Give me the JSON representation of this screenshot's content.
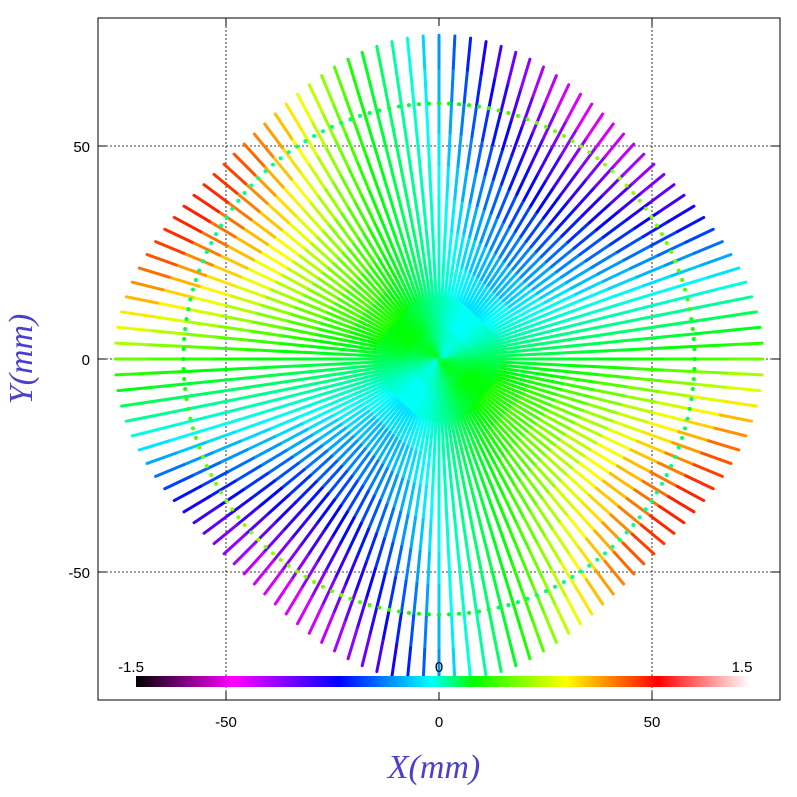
{
  "chart_data": {
    "type": "scatter",
    "title": "",
    "xlabel": "X(mm)",
    "ylabel": "Y(mm)",
    "xlim": [
      -80,
      80
    ],
    "ylim": [
      -80,
      80
    ],
    "xticks": [
      -50,
      0,
      50
    ],
    "yticks": [
      -50,
      0,
      50
    ],
    "x_tick_labels": [
      "-50",
      "0",
      "50"
    ],
    "y_tick_labels": [
      "-50",
      "0",
      "50"
    ],
    "grid": "dashed at ±50 and 0",
    "pattern": {
      "description_visible": "radial lines of points from origin",
      "num_rays": 128,
      "inner_ring_radius": 60,
      "outer_radius_range": [
        68,
        76
      ]
    },
    "colorbar": {
      "min_label": "-1.5",
      "mid_label": "0",
      "max_label": "1.5",
      "min": -1.5,
      "max": 1.5,
      "placement": "bottom-inside",
      "colors": [
        "#000000",
        "#ff00ff",
        "#0000ff",
        "#00ffff",
        "#00ff00",
        "#ffff00",
        "#ff0000",
        "#ffffff"
      ]
    }
  }
}
